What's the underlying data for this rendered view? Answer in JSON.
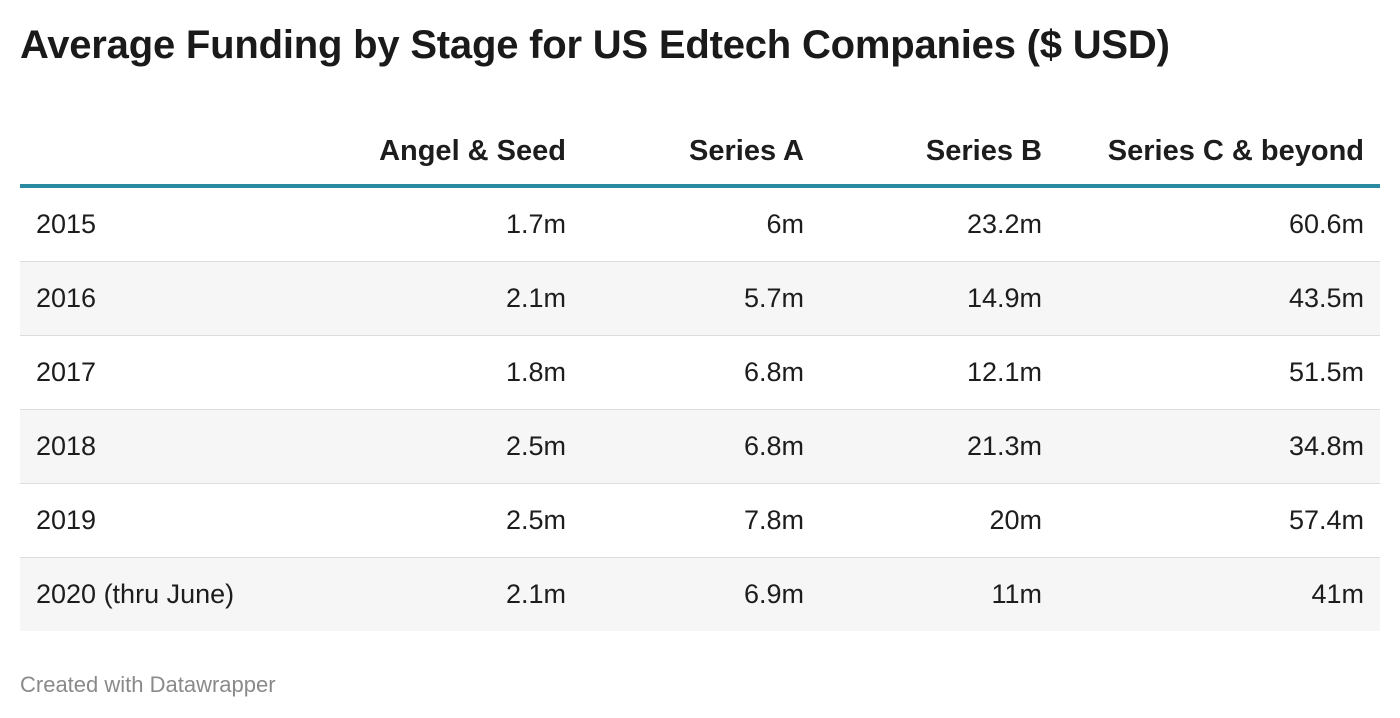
{
  "chart_data": {
    "type": "table",
    "title": "Average Funding by Stage for US Edtech Companies ($ USD)",
    "columns": [
      "",
      "Angel & Seed",
      "Series A",
      "Series B",
      "Series C & beyond"
    ],
    "rows": [
      {
        "label": "2015",
        "values": [
          "1.7m",
          "6m",
          "23.2m",
          "60.6m"
        ]
      },
      {
        "label": "2016",
        "values": [
          "2.1m",
          "5.7m",
          "14.9m",
          "43.5m"
        ]
      },
      {
        "label": "2017",
        "values": [
          "1.8m",
          "6.8m",
          "12.1m",
          "51.5m"
        ]
      },
      {
        "label": "2018",
        "values": [
          "2.5m",
          "6.8m",
          "21.3m",
          "34.8m"
        ]
      },
      {
        "label": "2019",
        "values": [
          "2.5m",
          "7.8m",
          "20m",
          "57.4m"
        ]
      },
      {
        "label": "2020 (thru June)",
        "values": [
          "2.1m",
          "6.9m",
          "11m",
          "41m"
        ]
      }
    ],
    "header_rule_color": "#2a8aa0",
    "alt_row_color": "#f6f6f6"
  },
  "footer": {
    "credit": "Created with Datawrapper"
  }
}
